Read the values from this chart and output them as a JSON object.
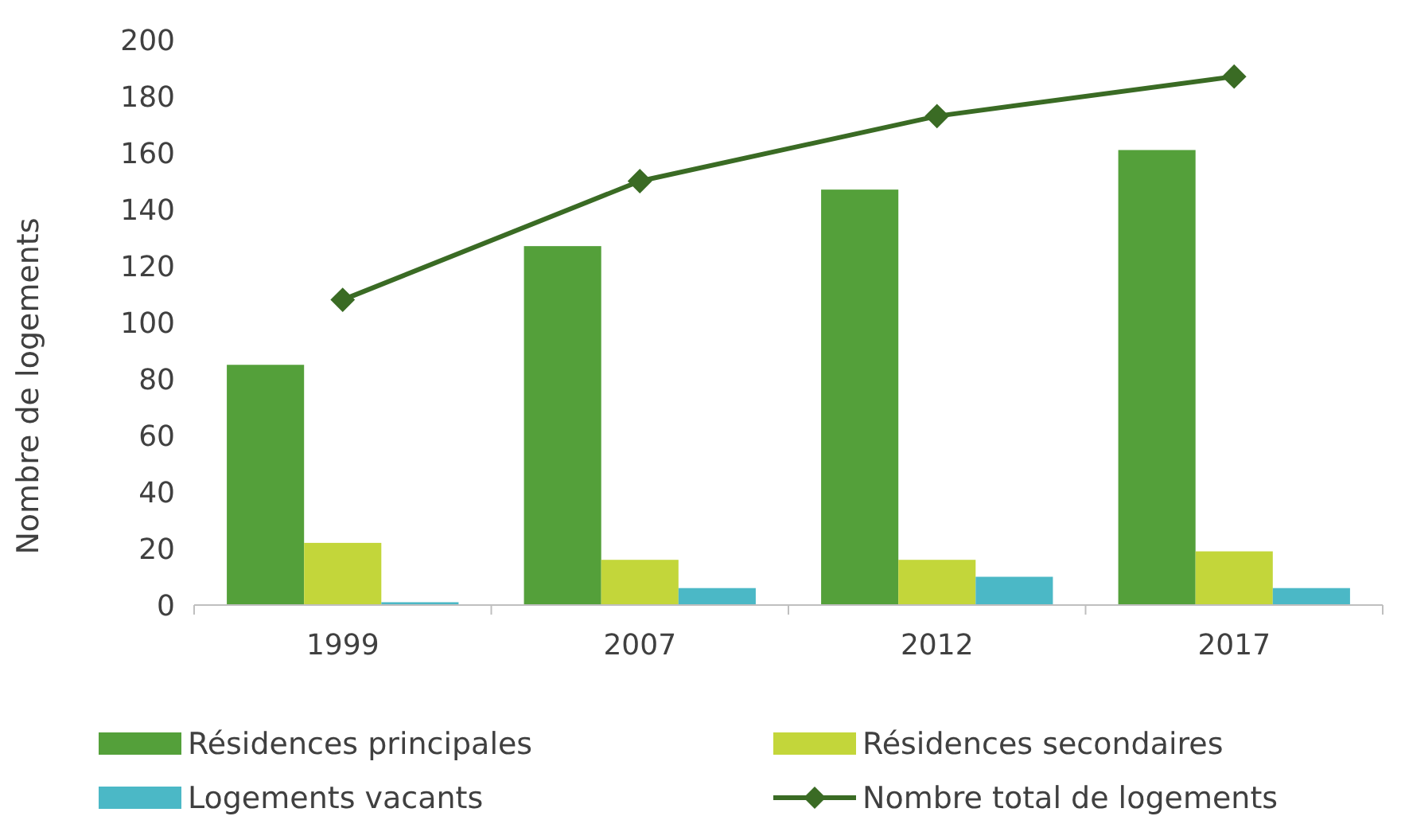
{
  "chart_data": {
    "type": "bar",
    "ylabel": "Nombre de logements",
    "categories": [
      "1999",
      "2007",
      "2012",
      "2017"
    ],
    "series": [
      {
        "name": "Résidences principales",
        "color": "#54a03a",
        "values": [
          85,
          127,
          147,
          161
        ]
      },
      {
        "name": "Résidences secondaires",
        "color": "#c3d63a",
        "values": [
          22,
          16,
          16,
          19
        ]
      },
      {
        "name": "Logements vacants",
        "color": "#4bb8c6",
        "values": [
          1,
          6,
          10,
          6
        ]
      },
      {
        "name": "Nombre total de logements",
        "type": "line",
        "color": "#3a6b24",
        "values": [
          108,
          150,
          173,
          187
        ],
        "marker": "diamond",
        "line_style": "solid"
      }
    ],
    "ylim": [
      0,
      200
    ],
    "yticks": [
      0,
      20,
      40,
      60,
      80,
      100,
      120,
      140,
      160,
      180,
      200
    ],
    "grid": false,
    "legend": "bottom"
  }
}
